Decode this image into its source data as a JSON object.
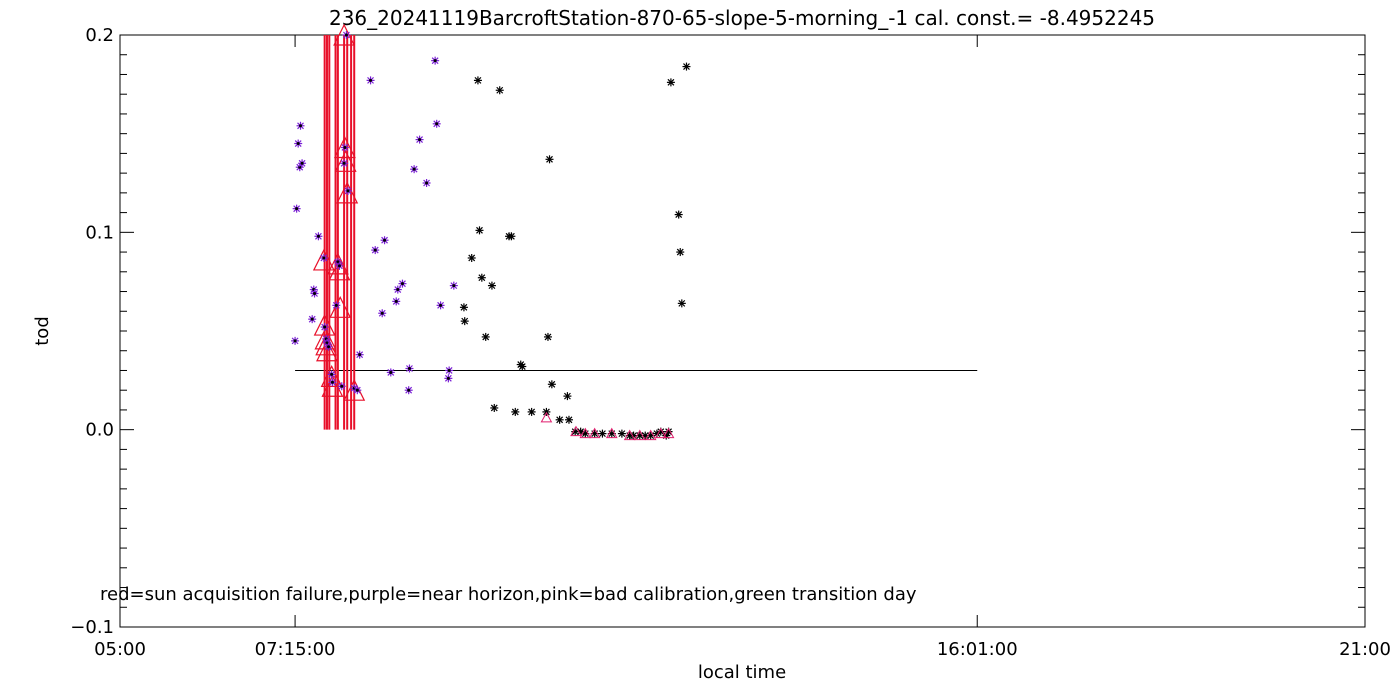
{
  "chart_data": {
    "type": "scatter",
    "title": "236_20241119BarcroftStation-870-65-slope-5-morning_-1 cal. const.= -8.4952245",
    "xlabel": "local time",
    "ylabel": "tod",
    "x_unit": "hours",
    "xlim": [
      5.0,
      21.0
    ],
    "ylim": [
      -0.1,
      0.2
    ],
    "x_tick_labels": [
      {
        "x": 5.0,
        "label": "05:00"
      },
      {
        "x": 7.25,
        "label": "07:15:00"
      },
      {
        "x": 16.0167,
        "label": "16:01:00"
      },
      {
        "x": 21.0,
        "label": "21:00"
      }
    ],
    "y_tick_labels": [
      {
        "y": -0.1,
        "label": "−0.1"
      },
      {
        "y": 0.0,
        "label": "0.0"
      },
      {
        "y": 0.1,
        "label": "0.1"
      },
      {
        "y": 0.2,
        "label": "0.2"
      }
    ],
    "annotation": "red=sun acquisition failure,purple=near horizon,pink=bad calibration,green transition day",
    "reference_line": {
      "y": 0.03,
      "x_range": [
        7.25,
        16.0167
      ],
      "color": "#000000"
    },
    "colors": {
      "star": "#000000",
      "purple": "#7a1fd6",
      "pink": "#e01f6e",
      "red": "#e8102a"
    },
    "series": [
      {
        "points": [
          [
            7.25,
            0.045
          ],
          [
            7.27,
            0.112
          ],
          [
            7.29,
            0.145
          ],
          [
            7.31,
            0.133
          ],
          [
            7.32,
            0.154
          ],
          [
            7.34,
            0.135
          ],
          [
            7.47,
            0.056
          ],
          [
            7.49,
            0.071
          ],
          [
            7.5,
            0.069
          ],
          [
            7.55,
            0.098
          ],
          [
            7.62,
            0.087
          ],
          [
            7.63,
            0.052
          ],
          [
            7.65,
            0.046
          ],
          [
            7.66,
            0.044
          ],
          [
            7.68,
            0.042
          ],
          [
            7.72,
            0.028
          ],
          [
            7.73,
            0.024
          ],
          [
            7.78,
            0.063
          ],
          [
            7.8,
            0.085
          ],
          [
            7.82,
            0.083
          ],
          [
            7.85,
            0.022
          ],
          [
            7.88,
            0.135
          ],
          [
            7.89,
            0.143
          ],
          [
            7.91,
            0.2
          ],
          [
            7.93,
            0.121
          ],
          [
            8.01,
            0.021
          ],
          [
            8.05,
            0.02
          ],
          [
            8.08,
            0.038
          ],
          [
            8.22,
            0.177
          ],
          [
            8.28,
            0.091
          ],
          [
            8.37,
            0.059
          ],
          [
            8.4,
            0.096
          ],
          [
            8.48,
            0.029
          ],
          [
            8.55,
            0.065
          ],
          [
            8.57,
            0.071
          ],
          [
            8.63,
            0.074
          ],
          [
            8.71,
            0.02
          ],
          [
            8.72,
            0.031
          ],
          [
            8.78,
            0.132
          ],
          [
            8.85,
            0.147
          ],
          [
            8.94,
            0.125
          ],
          [
            9.05,
            0.187
          ],
          [
            9.07,
            0.155
          ],
          [
            9.12,
            0.063
          ],
          [
            9.22,
            0.026
          ],
          [
            9.23,
            0.03
          ],
          [
            9.29,
            0.073
          ]
        ]
      },
      {
        "points": [
          [
            9.42,
            0.062
          ],
          [
            9.43,
            0.055
          ],
          [
            9.52,
            0.087
          ],
          [
            9.6,
            0.177
          ],
          [
            9.62,
            0.101
          ],
          [
            9.65,
            0.077
          ],
          [
            9.7,
            0.047
          ],
          [
            9.78,
            0.073
          ],
          [
            9.81,
            0.011
          ],
          [
            9.88,
            0.172
          ],
          [
            10.0,
            0.098
          ],
          [
            10.03,
            0.098
          ],
          [
            10.08,
            0.009
          ],
          [
            10.15,
            0.033
          ],
          [
            10.17,
            0.032
          ],
          [
            10.29,
            0.009
          ],
          [
            10.48,
            0.009
          ],
          [
            10.5,
            0.047
          ],
          [
            10.52,
            0.137
          ],
          [
            10.55,
            0.023
          ],
          [
            10.65,
            0.005
          ],
          [
            10.75,
            0.017
          ],
          [
            10.77,
            0.005
          ],
          [
            10.85,
            -0.001
          ],
          [
            10.92,
            -0.001
          ],
          [
            10.98,
            -0.002
          ],
          [
            11.1,
            -0.002
          ],
          [
            11.2,
            -0.002
          ],
          [
            11.32,
            -0.002
          ],
          [
            11.45,
            -0.002
          ],
          [
            11.55,
            -0.003
          ],
          [
            11.6,
            -0.003
          ],
          [
            11.68,
            -0.003
          ],
          [
            11.75,
            -0.003
          ],
          [
            11.82,
            -0.003
          ],
          [
            11.9,
            -0.002
          ],
          [
            11.95,
            -0.001
          ],
          [
            12.02,
            -0.003
          ],
          [
            12.05,
            -0.001
          ],
          [
            12.08,
            0.176
          ],
          [
            12.18,
            0.109
          ],
          [
            12.2,
            0.09
          ],
          [
            12.22,
            0.064
          ],
          [
            12.28,
            0.184
          ]
        ]
      }
    ],
    "triangles": [
      [
        7.62,
        0.086
      ],
      [
        7.63,
        0.053
      ],
      [
        7.64,
        0.046
      ],
      [
        7.65,
        0.043
      ],
      [
        7.66,
        0.04
      ],
      [
        7.72,
        0.027
      ],
      [
        7.73,
        0.022
      ],
      [
        7.8,
        0.084
      ],
      [
        7.82,
        0.081
      ],
      [
        7.83,
        0.062
      ],
      [
        7.88,
        0.2
      ],
      [
        7.89,
        0.143
      ],
      [
        7.9,
        0.136
      ],
      [
        7.92,
        0.12
      ],
      [
        8.01,
        0.02
      ]
    ],
    "pink_marks": [
      [
        10.48,
        0.006
      ],
      [
        10.86,
        -0.001
      ],
      [
        10.98,
        -0.002
      ],
      [
        11.1,
        -0.002
      ],
      [
        11.32,
        -0.002
      ],
      [
        11.55,
        -0.003
      ],
      [
        11.68,
        -0.003
      ],
      [
        11.82,
        -0.003
      ],
      [
        11.95,
        -0.002
      ],
      [
        12.05,
        -0.002
      ]
    ],
    "red_verticals": [
      7.63,
      7.66,
      7.69,
      7.77,
      7.8,
      7.88,
      7.92,
      7.97,
      8.01
    ]
  }
}
